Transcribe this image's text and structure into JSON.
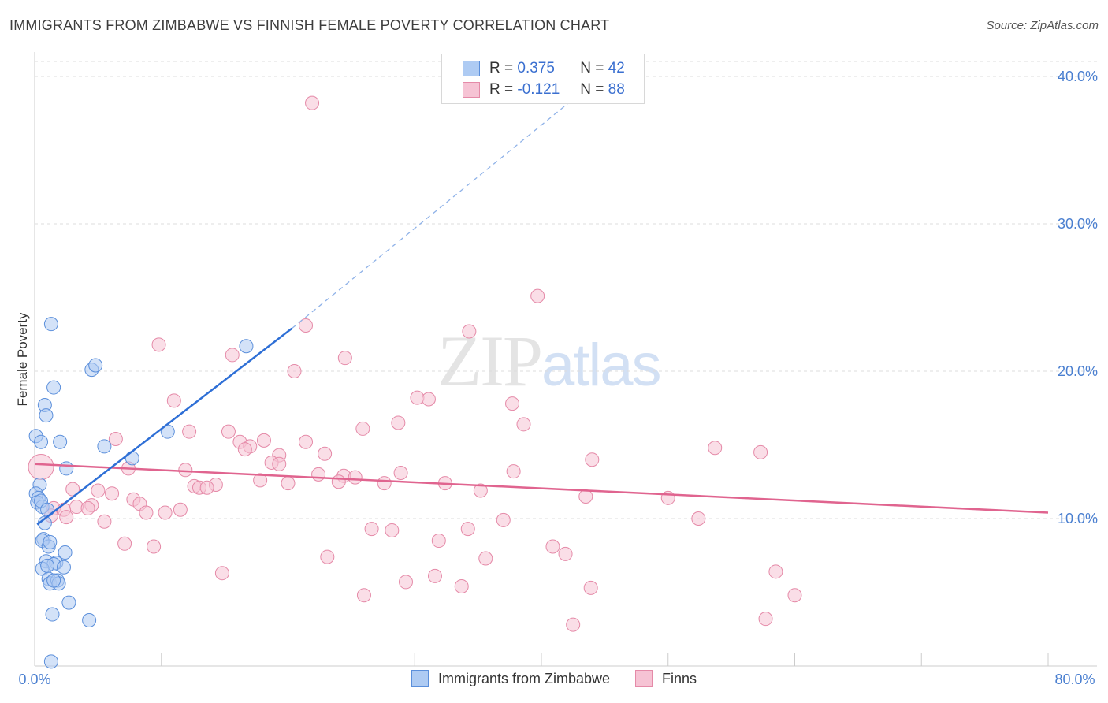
{
  "title": "IMMIGRANTS FROM ZIMBABWE VS FINNISH FEMALE POVERTY CORRELATION CHART",
  "source": "Source: ZipAtlas.com",
  "watermark": {
    "zip": "ZIP",
    "atlas": "atlas"
  },
  "legend": {
    "r_label": "R =",
    "n_label": "N =",
    "rows": [
      {
        "r": "0.375",
        "n": "42"
      },
      {
        "r": "-0.121",
        "n": "88"
      }
    ]
  },
  "colors": {
    "blue_fill": "#aecbf3",
    "blue_stroke": "#5b8fdb",
    "blue_line": "#2e6fd6",
    "pink_fill": "#f6c3d4",
    "pink_stroke": "#e58aa8",
    "pink_line": "#e0648f",
    "tick_text": "#4a7fd0",
    "grid": "#dddddd"
  },
  "chart_data": {
    "type": "scatter",
    "title": "IMMIGRANTS FROM ZIMBABWE VS FINNISH FEMALE POVERTY CORRELATION CHART",
    "xlabel": "",
    "ylabel": "Female Poverty",
    "xlim": [
      0,
      80
    ],
    "ylim": [
      0,
      42
    ],
    "x_tick_labels": [
      "0.0%",
      "80.0%"
    ],
    "y_ticks": [
      10,
      20,
      30,
      40
    ],
    "y_tick_labels": [
      "10.0%",
      "20.0%",
      "30.0%",
      "40.0%"
    ],
    "grid": true,
    "series": [
      {
        "name": "Immigrants from Zimbabwe",
        "r": 0.375,
        "n": 42,
        "trend": {
          "x0": 0.2,
          "y0": 9.6,
          "x1": 20.3,
          "y1": 22.9,
          "dash_to_x": 46.0,
          "dash_to_y": 40.9
        },
        "points": [
          [
            1.3,
            23.2
          ],
          [
            16.7,
            21.7
          ],
          [
            4.5,
            20.1
          ],
          [
            4.8,
            20.4
          ],
          [
            1.5,
            18.9
          ],
          [
            0.8,
            17.7
          ],
          [
            0.9,
            17.0
          ],
          [
            10.5,
            15.9
          ],
          [
            0.1,
            15.6
          ],
          [
            0.5,
            15.2
          ],
          [
            2.0,
            15.2
          ],
          [
            5.5,
            14.9
          ],
          [
            7.7,
            14.1
          ],
          [
            2.5,
            13.4
          ],
          [
            0.4,
            12.3
          ],
          [
            0.1,
            11.7
          ],
          [
            0.3,
            11.4
          ],
          [
            0.2,
            11.1
          ],
          [
            0.6,
            10.8
          ],
          [
            0.5,
            11.2
          ],
          [
            1.0,
            10.6
          ],
          [
            0.8,
            9.7
          ],
          [
            0.7,
            8.6
          ],
          [
            0.6,
            8.5
          ],
          [
            1.1,
            8.1
          ],
          [
            1.2,
            8.4
          ],
          [
            2.4,
            7.7
          ],
          [
            0.9,
            7.1
          ],
          [
            1.7,
            7.0
          ],
          [
            1.5,
            6.9
          ],
          [
            0.6,
            6.6
          ],
          [
            1.0,
            6.8
          ],
          [
            2.3,
            6.7
          ],
          [
            1.1,
            5.9
          ],
          [
            1.2,
            5.6
          ],
          [
            1.8,
            5.8
          ],
          [
            1.9,
            5.6
          ],
          [
            1.5,
            5.8
          ],
          [
            2.7,
            4.3
          ],
          [
            1.4,
            3.5
          ],
          [
            4.3,
            3.1
          ],
          [
            1.3,
            0.3
          ]
        ]
      },
      {
        "name": "Finns",
        "r": -0.121,
        "n": 88,
        "trend": {
          "x0": 0,
          "y0": 13.7,
          "x1": 80,
          "y1": 10.4
        },
        "points": [
          [
            21.9,
            38.2
          ],
          [
            39.7,
            25.1
          ],
          [
            21.4,
            23.1
          ],
          [
            34.3,
            22.7
          ],
          [
            9.8,
            21.8
          ],
          [
            15.6,
            21.1
          ],
          [
            24.5,
            20.9
          ],
          [
            20.5,
            20.0
          ],
          [
            30.2,
            18.2
          ],
          [
            31.1,
            18.1
          ],
          [
            11.0,
            18.0
          ],
          [
            37.7,
            17.8
          ],
          [
            28.7,
            16.5
          ],
          [
            38.6,
            16.4
          ],
          [
            25.9,
            16.1
          ],
          [
            12.2,
            15.9
          ],
          [
            15.3,
            15.9
          ],
          [
            6.4,
            15.4
          ],
          [
            18.1,
            15.3
          ],
          [
            16.2,
            15.2
          ],
          [
            21.4,
            15.2
          ],
          [
            17.0,
            14.9
          ],
          [
            16.6,
            14.7
          ],
          [
            53.7,
            14.8
          ],
          [
            57.3,
            14.5
          ],
          [
            19.3,
            14.3
          ],
          [
            22.9,
            14.4
          ],
          [
            44.0,
            14.0
          ],
          [
            18.7,
            13.8
          ],
          [
            19.3,
            13.7
          ],
          [
            7.4,
            13.4
          ],
          [
            11.9,
            13.3
          ],
          [
            37.8,
            13.2
          ],
          [
            28.9,
            13.1
          ],
          [
            22.4,
            13.0
          ],
          [
            24.4,
            12.9
          ],
          [
            25.3,
            12.8
          ],
          [
            17.8,
            12.6
          ],
          [
            24.0,
            12.5
          ],
          [
            27.6,
            12.4
          ],
          [
            32.4,
            12.4
          ],
          [
            14.3,
            12.3
          ],
          [
            12.6,
            12.2
          ],
          [
            13.0,
            12.1
          ],
          [
            13.6,
            12.1
          ],
          [
            3.0,
            12.0
          ],
          [
            5.0,
            11.9
          ],
          [
            6.1,
            11.7
          ],
          [
            35.2,
            11.9
          ],
          [
            43.5,
            11.5
          ],
          [
            50.0,
            11.4
          ],
          [
            7.8,
            11.3
          ],
          [
            8.3,
            11.0
          ],
          [
            3.3,
            10.8
          ],
          [
            4.5,
            10.9
          ],
          [
            1.5,
            10.7
          ],
          [
            2.3,
            10.6
          ],
          [
            4.2,
            10.7
          ],
          [
            11.5,
            10.6
          ],
          [
            8.8,
            10.4
          ],
          [
            10.3,
            10.4
          ],
          [
            1.3,
            10.2
          ],
          [
            2.5,
            10.1
          ],
          [
            52.4,
            10.0
          ],
          [
            37.0,
            9.9
          ],
          [
            5.5,
            9.8
          ],
          [
            34.2,
            9.3
          ],
          [
            26.6,
            9.3
          ],
          [
            28.2,
            9.2
          ],
          [
            31.9,
            8.5
          ],
          [
            7.1,
            8.3
          ],
          [
            9.4,
            8.1
          ],
          [
            40.9,
            8.1
          ],
          [
            41.9,
            7.6
          ],
          [
            23.1,
            7.4
          ],
          [
            35.6,
            7.3
          ],
          [
            58.5,
            6.4
          ],
          [
            14.8,
            6.3
          ],
          [
            31.6,
            6.1
          ],
          [
            29.3,
            5.7
          ],
          [
            33.7,
            5.4
          ],
          [
            43.9,
            5.3
          ],
          [
            26.0,
            4.8
          ],
          [
            60.0,
            4.8
          ],
          [
            57.7,
            3.2
          ],
          [
            42.5,
            2.8
          ],
          [
            0.5,
            13.5
          ],
          [
            20.0,
            12.4
          ]
        ]
      }
    ]
  },
  "bottom_legend": [
    "Immigrants from Zimbabwe",
    "Finns"
  ]
}
